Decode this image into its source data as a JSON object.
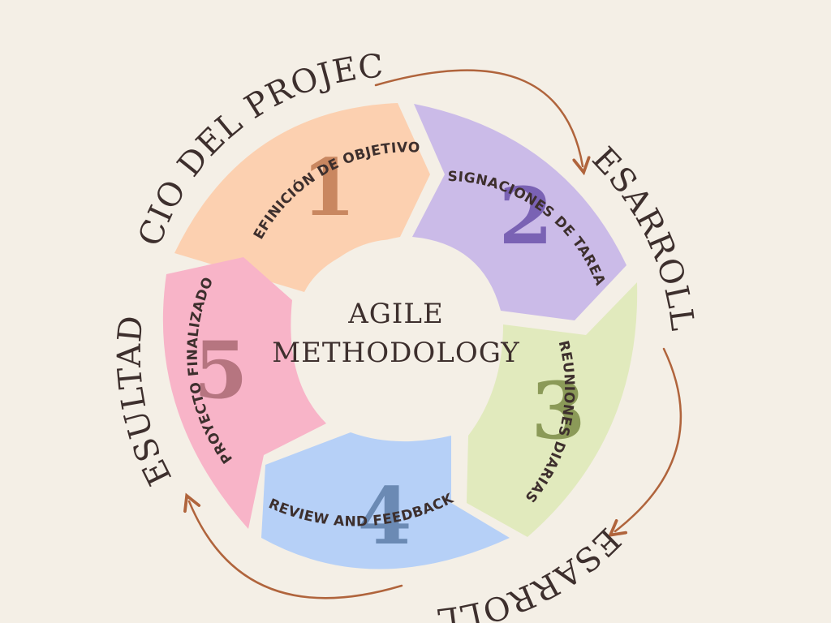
{
  "diagram": {
    "center": {
      "line1": "AGILE",
      "line2": "METHODOLOGY"
    },
    "phases": {
      "inicio": "INICIO DEL PROJECTO",
      "desarrollo_right": "DESARROLLO",
      "desarrollo_bottom": "DESARROLLO",
      "resultado": "RESULTADO"
    },
    "segments": [
      {
        "number": "1",
        "label": "DEFINICIÓN DE OBJETIVOS",
        "fill": "#fcd0b0",
        "number_color": "#c98760"
      },
      {
        "number": "2",
        "label": "ASIGNACIONES DE TAREAS",
        "fill": "#cbbbe8",
        "number_color": "#7a62b4"
      },
      {
        "number": "3",
        "label": "REUNIONES DIARIAS",
        "fill": "#e1eabd",
        "number_color": "#8b9a58"
      },
      {
        "number": "4",
        "label": "REVIEW AND FEEDBACK",
        "fill": "#b6d0f7",
        "number_color": "#6b8ab4"
      },
      {
        "number": "5",
        "label": "PROYECTO FINALIZADO",
        "fill": "#f8b4c8",
        "number_color": "#b67580"
      }
    ],
    "colors": {
      "background": "#f4efe6",
      "text": "#3d2f2d",
      "arrow": "#b0643c"
    }
  }
}
